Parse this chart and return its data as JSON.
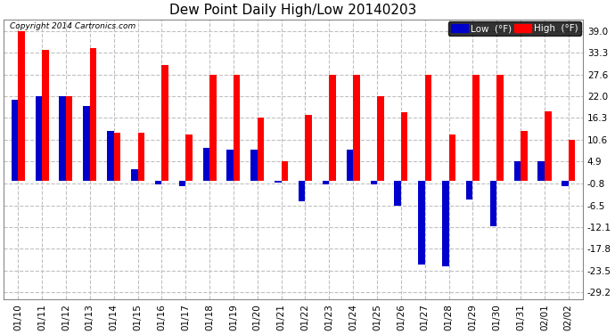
{
  "title": "Dew Point Daily High/Low 20140203",
  "copyright": "Copyright 2014 Cartronics.com",
  "dates": [
    "01/10",
    "01/11",
    "01/12",
    "01/13",
    "01/14",
    "01/15",
    "01/16",
    "01/17",
    "01/18",
    "01/19",
    "01/20",
    "01/21",
    "01/22",
    "01/23",
    "01/24",
    "01/25",
    "01/26",
    "01/27",
    "01/28",
    "01/29",
    "01/30",
    "01/31",
    "02/01",
    "02/02"
  ],
  "high_values": [
    39.0,
    34.0,
    22.0,
    34.5,
    12.5,
    12.5,
    30.0,
    12.0,
    27.6,
    27.6,
    16.3,
    5.0,
    17.0,
    27.6,
    27.6,
    22.0,
    17.8,
    27.6,
    12.0,
    27.6,
    27.6,
    13.0,
    18.0,
    10.6
  ],
  "low_values": [
    21.0,
    22.0,
    22.0,
    19.5,
    13.0,
    3.0,
    -1.0,
    -1.5,
    8.5,
    8.0,
    8.0,
    -0.5,
    -5.5,
    -1.0,
    8.0,
    -1.0,
    -6.5,
    -22.0,
    -22.5,
    -5.0,
    -12.0,
    4.9,
    4.9,
    -1.5
  ],
  "high_color": "#ff0000",
  "low_color": "#0000cc",
  "bg_color": "#ffffff",
  "grid_color": "#c0c0c0",
  "yticks": [
    39.0,
    33.3,
    27.6,
    22.0,
    16.3,
    10.6,
    4.9,
    -0.8,
    -6.5,
    -12.1,
    -17.8,
    -23.5,
    -29.2
  ],
  "ylim": [
    -31.0,
    42.0
  ],
  "bar_width": 0.28,
  "title_fontsize": 11,
  "tick_fontsize": 7.5,
  "legend_low_label": "Low  (°F)",
  "legend_high_label": "High  (°F)"
}
